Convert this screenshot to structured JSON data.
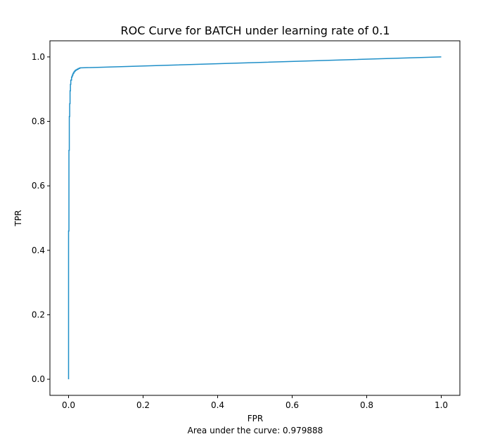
{
  "chart_data": {
    "type": "line",
    "title": "ROC Curve for BATCH under learning rate of 0.1",
    "xlabel": "FPR",
    "ylabel": "TPR",
    "caption": "Area under the curve: 0.979888",
    "xlim": [
      -0.05,
      1.05
    ],
    "ylim": [
      -0.05,
      1.05
    ],
    "x_ticks": [
      0.0,
      0.2,
      0.4,
      0.6,
      0.8,
      1.0
    ],
    "y_ticks": [
      0.0,
      0.2,
      0.4,
      0.6,
      0.8,
      1.0
    ],
    "x_tick_labels": [
      "0.0",
      "0.2",
      "0.4",
      "0.6",
      "0.8",
      "1.0"
    ],
    "y_tick_labels": [
      "0.0",
      "0.2",
      "0.4",
      "0.6",
      "0.8",
      "1.0"
    ],
    "grid": false,
    "series": [
      {
        "color": "#1f8fc8",
        "x": [
          0.0,
          0.0,
          0.001,
          0.001,
          0.002,
          0.002,
          0.003,
          0.003,
          0.004,
          0.004,
          0.005,
          0.005,
          0.006,
          0.006,
          0.008,
          0.008,
          0.01,
          0.01,
          0.012,
          0.012,
          0.014,
          0.014,
          0.016,
          0.016,
          0.018,
          0.018,
          0.02,
          0.02,
          0.023,
          0.023,
          0.026,
          0.026,
          0.03,
          0.03,
          1.0
        ],
        "y": [
          0.0,
          0.46,
          0.46,
          0.71,
          0.71,
          0.815,
          0.815,
          0.855,
          0.855,
          0.895,
          0.895,
          0.915,
          0.915,
          0.928,
          0.928,
          0.938,
          0.938,
          0.944,
          0.944,
          0.949,
          0.949,
          0.953,
          0.953,
          0.956,
          0.956,
          0.958,
          0.958,
          0.96,
          0.96,
          0.962,
          0.962,
          0.964,
          0.964,
          0.966,
          1.0
        ]
      }
    ]
  }
}
